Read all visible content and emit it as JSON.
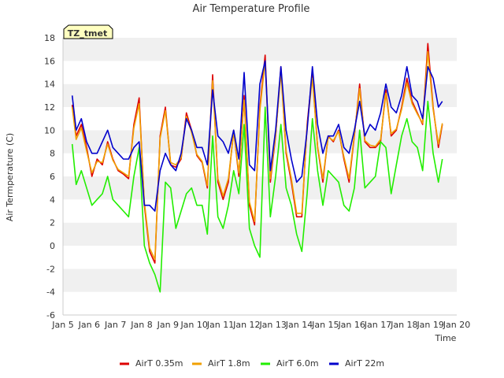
{
  "chart_data": {
    "type": "line",
    "title": "Air Temperature Profile",
    "xlabel": "Time",
    "ylabel": "Air Termperature (C)",
    "site_label": "TZ_tmet",
    "xlim": [
      "Jan 5",
      "Jan 20"
    ],
    "ylim": [
      -6,
      18
    ],
    "x_ticks": [
      "Jan 5",
      "Jan 6",
      "Jan 7",
      "Jan 8",
      "Jan 9",
      "Jan 10",
      "Jan 11",
      "Jan 12",
      "Jan 13",
      "Jan 14",
      "Jan 15",
      "Jan 16",
      "Jan 17",
      "Jan 18",
      "Jan 19",
      "Jan 20"
    ],
    "y_ticks": [
      -6,
      -4,
      -2,
      0,
      2,
      4,
      6,
      8,
      10,
      12,
      14,
      16,
      18
    ],
    "grid": "horizontal bands",
    "legend_position": "bottom",
    "x_days": [
      5.35,
      5.5,
      5.7,
      5.9,
      6.1,
      6.3,
      6.5,
      6.7,
      6.9,
      7.1,
      7.3,
      7.5,
      7.7,
      7.9,
      8.1,
      8.3,
      8.5,
      8.7,
      8.9,
      9.1,
      9.3,
      9.5,
      9.7,
      9.9,
      10.1,
      10.3,
      10.5,
      10.7,
      10.9,
      11.1,
      11.3,
      11.5,
      11.7,
      11.9,
      12.1,
      12.3,
      12.5,
      12.7,
      12.9,
      13.1,
      13.3,
      13.5,
      13.7,
      13.9,
      14.1,
      14.3,
      14.5,
      14.7,
      14.9,
      15.1,
      15.3,
      15.5,
      15.7,
      15.9,
      16.1,
      16.3,
      16.5,
      16.7,
      16.9,
      17.1,
      17.3,
      17.5,
      17.7,
      17.9,
      18.1,
      18.3,
      18.5,
      18.7,
      18.9,
      19.1,
      19.3,
      19.45
    ],
    "series": [
      {
        "name": "AirT 0.35m",
        "color": "#dd0000",
        "values": [
          12.2,
          9.5,
          10.5,
          8.5,
          6.0,
          7.5,
          7.0,
          9.0,
          7.5,
          6.5,
          6.2,
          5.8,
          10.5,
          12.8,
          3.5,
          -0.5,
          -1.5,
          9.5,
          12.0,
          7.0,
          6.8,
          7.5,
          11.5,
          10.0,
          7.8,
          7.2,
          5.0,
          14.8,
          5.5,
          4.0,
          5.5,
          10.0,
          6.0,
          13.0,
          3.5,
          1.8,
          12.0,
          16.5,
          5.5,
          9.5,
          15.5,
          8.0,
          5.5,
          2.5,
          2.5,
          10.5,
          15.0,
          8.5,
          5.5,
          9.5,
          9.0,
          10.0,
          7.5,
          5.5,
          9.5,
          14.0,
          9.0,
          8.5,
          8.5,
          9.0,
          13.5,
          9.5,
          10.0,
          12.0,
          14.5,
          12.5,
          11.5,
          10.5,
          17.5,
          12.0,
          8.5,
          10.5
        ]
      },
      {
        "name": "AirT 1.8m",
        "color": "#f0a000",
        "values": [
          12.0,
          9.2,
          10.2,
          8.2,
          6.3,
          7.3,
          7.2,
          8.8,
          7.4,
          6.6,
          6.3,
          6.0,
          10.2,
          12.3,
          3.8,
          -0.2,
          -1.2,
          9.3,
          11.7,
          7.2,
          7.0,
          7.6,
          11.2,
          9.8,
          7.9,
          7.3,
          5.2,
          14.3,
          5.8,
          4.3,
          5.8,
          9.8,
          6.3,
          12.6,
          3.8,
          2.1,
          11.7,
          16.0,
          5.8,
          9.6,
          15.0,
          8.2,
          5.8,
          2.8,
          2.8,
          10.3,
          14.5,
          8.6,
          5.8,
          9.4,
          9.1,
          9.9,
          7.7,
          5.8,
          9.6,
          13.6,
          9.1,
          8.7,
          8.6,
          9.2,
          13.2,
          9.7,
          10.1,
          11.8,
          14.1,
          12.3,
          11.4,
          10.6,
          16.8,
          11.8,
          8.8,
          10.6
        ]
      },
      {
        "name": "AirT 6.0m",
        "color": "#22ee00",
        "values": [
          8.8,
          5.3,
          6.5,
          5.0,
          3.5,
          4.0,
          4.5,
          6.0,
          4.0,
          3.5,
          3.0,
          2.5,
          6.0,
          8.5,
          0.0,
          -1.5,
          -2.5,
          -4.0,
          5.5,
          5.0,
          1.5,
          3.0,
          4.5,
          5.0,
          3.5,
          3.5,
          1.0,
          9.5,
          2.5,
          1.5,
          3.5,
          6.5,
          4.5,
          10.5,
          1.5,
          0.0,
          -1.0,
          12.0,
          2.5,
          6.0,
          10.5,
          5.0,
          3.5,
          1.0,
          -0.5,
          4.5,
          11.0,
          6.5,
          3.5,
          6.5,
          6.0,
          5.5,
          3.5,
          3.0,
          5.0,
          10.0,
          5.0,
          5.5,
          6.0,
          9.0,
          8.5,
          4.5,
          7.0,
          9.5,
          11.0,
          9.0,
          8.5,
          6.5,
          12.5,
          8.0,
          5.5,
          7.5
        ]
      },
      {
        "name": "AirT 22m",
        "color": "#0000cc",
        "values": [
          13.0,
          10.0,
          11.0,
          9.0,
          8.0,
          8.0,
          9.0,
          10.0,
          8.5,
          8.0,
          7.5,
          7.5,
          8.5,
          9.0,
          3.5,
          3.5,
          3.0,
          6.5,
          8.0,
          7.0,
          6.5,
          8.0,
          11.0,
          10.0,
          8.5,
          8.5,
          7.0,
          13.5,
          9.5,
          9.0,
          8.0,
          10.0,
          7.5,
          15.0,
          7.0,
          6.5,
          14.0,
          16.0,
          6.5,
          10.0,
          15.5,
          10.0,
          7.5,
          5.5,
          6.0,
          10.0,
          15.5,
          10.5,
          8.0,
          9.5,
          9.5,
          10.5,
          8.5,
          8.0,
          10.0,
          12.5,
          9.5,
          10.5,
          10.0,
          11.5,
          14.0,
          12.0,
          11.5,
          13.0,
          15.5,
          13.0,
          12.5,
          11.0,
          15.5,
          14.5,
          12.0,
          12.5
        ]
      }
    ]
  }
}
